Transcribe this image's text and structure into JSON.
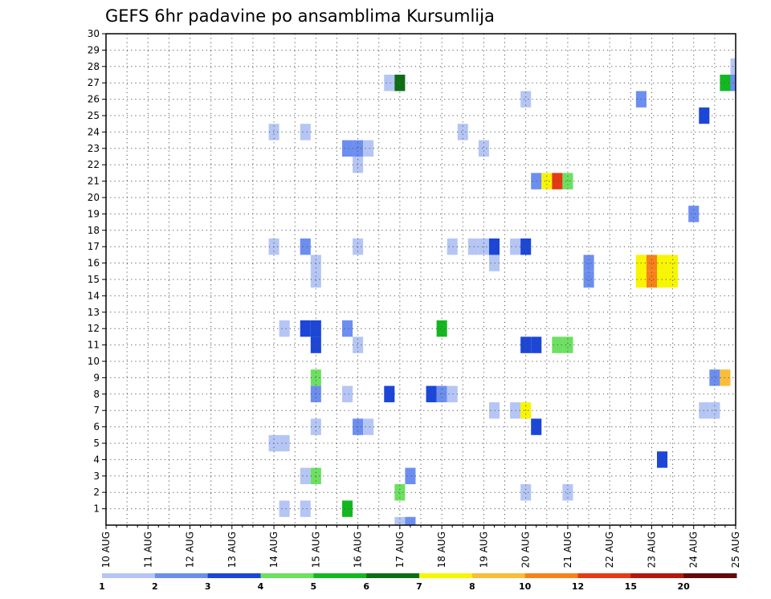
{
  "chart_data": {
    "type": "heatmap",
    "title": "GEFS 6hr padavine po ansamblima Kursumlija",
    "y_ticks": [
      "1",
      "2",
      "3",
      "4",
      "5",
      "6",
      "7",
      "8",
      "9",
      "10",
      "11",
      "12",
      "13",
      "14",
      "15",
      "16",
      "17",
      "18",
      "19",
      "20",
      "21",
      "22",
      "23",
      "24",
      "25",
      "26",
      "27",
      "28",
      "29",
      "30"
    ],
    "ylim": [
      0,
      30
    ],
    "x_ticks": [
      "10 AUG",
      "11 AUG",
      "12 AUG",
      "13 AUG",
      "14 AUG",
      "15 AUG",
      "16 AUG",
      "17 AUG",
      "18 AUG",
      "19 AUG",
      "20 AUG",
      "21 AUG",
      "22 AUG",
      "23 AUG",
      "24 AUG",
      "25 AUG"
    ],
    "xlim_days": [
      10,
      25
    ],
    "grid": true,
    "colorbar": {
      "labels": [
        "1",
        "2",
        "3",
        "4",
        "5",
        "6",
        "7",
        "8",
        "10",
        "12",
        "15",
        "20"
      ],
      "colors": [
        "#b5c6f5",
        "#6b8ef0",
        "#1b46d8",
        "#6ce060",
        "#13b820",
        "#0c6e14",
        "#f7f500",
        "#f9bd3a",
        "#f7811a",
        "#e53a13",
        "#b5170d",
        "#620a0a"
      ]
    },
    "cells": [
      {
        "d": 14.0,
        "m": 5,
        "c": 1
      },
      {
        "d": 14.25,
        "m": 5,
        "c": 1
      },
      {
        "d": 14.0,
        "m": 17,
        "c": 1
      },
      {
        "d": 14.0,
        "m": 24,
        "c": 1
      },
      {
        "d": 14.25,
        "m": 1,
        "c": 1
      },
      {
        "d": 14.25,
        "m": 12,
        "c": 1
      },
      {
        "d": 14.75,
        "m": 1,
        "c": 1
      },
      {
        "d": 14.75,
        "m": 3,
        "c": 1
      },
      {
        "d": 14.75,
        "m": 17,
        "c": 2
      },
      {
        "d": 14.75,
        "m": 12,
        "c": 3
      },
      {
        "d": 14.75,
        "m": 24,
        "c": 1
      },
      {
        "d": 15.0,
        "m": 3,
        "c": 4
      },
      {
        "d": 15.0,
        "m": 6,
        "c": 1
      },
      {
        "d": 15.0,
        "m": 8,
        "c": 2
      },
      {
        "d": 15.0,
        "m": 9,
        "c": 4
      },
      {
        "d": 15.0,
        "m": 11,
        "c": 3
      },
      {
        "d": 15.0,
        "m": 12,
        "c": 3
      },
      {
        "d": 15.0,
        "m": 15,
        "c": 1
      },
      {
        "d": 15.0,
        "m": 16,
        "c": 1
      },
      {
        "d": 15.75,
        "m": 1,
        "c": 5
      },
      {
        "d": 15.75,
        "m": 8,
        "c": 1
      },
      {
        "d": 15.75,
        "m": 12,
        "c": 2
      },
      {
        "d": 15.75,
        "m": 23,
        "c": 2
      },
      {
        "d": 16.0,
        "m": 6,
        "c": 2
      },
      {
        "d": 16.0,
        "m": 11,
        "c": 1
      },
      {
        "d": 16.0,
        "m": 17,
        "c": 1
      },
      {
        "d": 16.0,
        "m": 22,
        "c": 1
      },
      {
        "d": 16.0,
        "m": 23,
        "c": 2
      },
      {
        "d": 16.25,
        "m": 6,
        "c": 1
      },
      {
        "d": 16.25,
        "m": 23,
        "c": 1
      },
      {
        "d": 16.75,
        "m": 27,
        "c": 1
      },
      {
        "d": 17.0,
        "m": 2,
        "c": 4
      },
      {
        "d": 17.0,
        "m": 0,
        "c": 1
      },
      {
        "d": 17.0,
        "m": 27,
        "c": 6
      },
      {
        "d": 16.75,
        "m": 8,
        "c": 3
      },
      {
        "d": 17.25,
        "m": 3,
        "c": 2
      },
      {
        "d": 17.25,
        "m": 0,
        "c": 2
      },
      {
        "d": 17.75,
        "m": 8,
        "c": 3
      },
      {
        "d": 18.0,
        "m": 8,
        "c": 2
      },
      {
        "d": 18.0,
        "m": 12,
        "c": 5
      },
      {
        "d": 18.25,
        "m": 8,
        "c": 1
      },
      {
        "d": 18.25,
        "m": 17,
        "c": 1
      },
      {
        "d": 18.5,
        "m": 24,
        "c": 1
      },
      {
        "d": 18.75,
        "m": 17,
        "c": 1
      },
      {
        "d": 19.0,
        "m": 17,
        "c": 1
      },
      {
        "d": 19.0,
        "m": 23,
        "c": 1
      },
      {
        "d": 19.25,
        "m": 7,
        "c": 1
      },
      {
        "d": 19.25,
        "m": 16,
        "c": 1
      },
      {
        "d": 19.25,
        "m": 17,
        "c": 3
      },
      {
        "d": 19.75,
        "m": 7,
        "c": 1
      },
      {
        "d": 19.75,
        "m": 17,
        "c": 1
      },
      {
        "d": 20.0,
        "m": 2,
        "c": 1
      },
      {
        "d": 20.0,
        "m": 7,
        "c": 7
      },
      {
        "d": 20.0,
        "m": 11,
        "c": 3
      },
      {
        "d": 20.0,
        "m": 17,
        "c": 3
      },
      {
        "d": 20.0,
        "m": 26,
        "c": 1
      },
      {
        "d": 20.25,
        "m": 6,
        "c": 3
      },
      {
        "d": 20.25,
        "m": 11,
        "c": 3
      },
      {
        "d": 20.25,
        "m": 21,
        "c": 2
      },
      {
        "d": 20.5,
        "m": 21,
        "c": 7
      },
      {
        "d": 20.75,
        "m": 21,
        "c": 10
      },
      {
        "d": 21.0,
        "m": 21,
        "c": 4
      },
      {
        "d": 20.75,
        "m": 11,
        "c": 4
      },
      {
        "d": 21.0,
        "m": 11,
        "c": 4
      },
      {
        "d": 21.0,
        "m": 2,
        "c": 1
      },
      {
        "d": 21.5,
        "m": 15,
        "c": 2
      },
      {
        "d": 21.5,
        "m": 16,
        "c": 2
      },
      {
        "d": 22.75,
        "m": 15,
        "c": 7
      },
      {
        "d": 23.0,
        "m": 15,
        "c": 9
      },
      {
        "d": 23.25,
        "m": 15,
        "c": 7
      },
      {
        "d": 23.5,
        "m": 15,
        "c": 7
      },
      {
        "d": 22.75,
        "m": 16,
        "c": 7
      },
      {
        "d": 23.0,
        "m": 16,
        "c": 9
      },
      {
        "d": 23.25,
        "m": 16,
        "c": 7
      },
      {
        "d": 23.5,
        "m": 16,
        "c": 7
      },
      {
        "d": 22.75,
        "m": 26,
        "c": 2
      },
      {
        "d": 23.25,
        "m": 4,
        "c": 3
      },
      {
        "d": 24.0,
        "m": 19,
        "c": 2
      },
      {
        "d": 24.25,
        "m": 7,
        "c": 1
      },
      {
        "d": 24.5,
        "m": 7,
        "c": 1
      },
      {
        "d": 24.25,
        "m": 25,
        "c": 3
      },
      {
        "d": 24.5,
        "m": 9,
        "c": 2
      },
      {
        "d": 24.75,
        "m": 9,
        "c": 8
      },
      {
        "d": 24.75,
        "m": 27,
        "c": 5
      },
      {
        "d": 25.0,
        "m": 27,
        "c": 2
      },
      {
        "d": 25.0,
        "m": 28,
        "c": 1
      }
    ]
  }
}
